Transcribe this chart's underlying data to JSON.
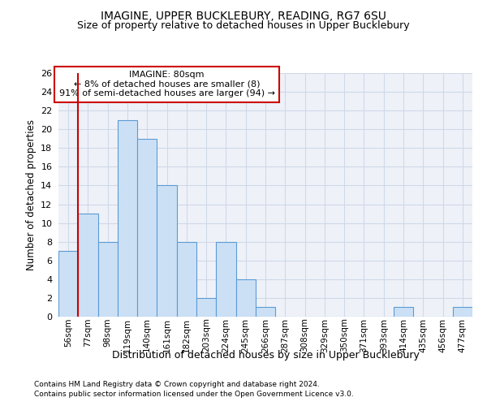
{
  "title": "IMAGINE, UPPER BUCKLEBURY, READING, RG7 6SU",
  "subtitle": "Size of property relative to detached houses in Upper Bucklebury",
  "xlabel": "Distribution of detached houses by size in Upper Bucklebury",
  "ylabel": "Number of detached properties",
  "footnote1": "Contains HM Land Registry data © Crown copyright and database right 2024.",
  "footnote2": "Contains public sector information licensed under the Open Government Licence v3.0.",
  "bar_labels": [
    "56sqm",
    "77sqm",
    "98sqm",
    "119sqm",
    "140sqm",
    "161sqm",
    "182sqm",
    "203sqm",
    "224sqm",
    "245sqm",
    "266sqm",
    "287sqm",
    "308sqm",
    "329sqm",
    "350sqm",
    "371sqm",
    "393sqm",
    "414sqm",
    "435sqm",
    "456sqm",
    "477sqm"
  ],
  "bar_values": [
    7,
    11,
    8,
    21,
    19,
    14,
    8,
    2,
    8,
    4,
    1,
    0,
    0,
    0,
    0,
    0,
    0,
    1,
    0,
    0,
    1
  ],
  "bar_color": "#cce0f5",
  "bar_edge_color": "#5b9bd5",
  "grid_color": "#d0d8e8",
  "background_color": "#eef2f8",
  "red_line_index": 1,
  "annotation_line1": "IMAGINE: 80sqm",
  "annotation_line2": "← 8% of detached houses are smaller (8)",
  "annotation_line3": "91% of semi-detached houses are larger (94) →",
  "annotation_box_color": "#ffffff",
  "annotation_border_color": "#cc0000",
  "ylim": [
    0,
    26
  ],
  "yticks": [
    0,
    2,
    4,
    6,
    8,
    10,
    12,
    14,
    16,
    18,
    20,
    22,
    24,
    26
  ],
  "title_fontsize": 10,
  "subtitle_fontsize": 9
}
